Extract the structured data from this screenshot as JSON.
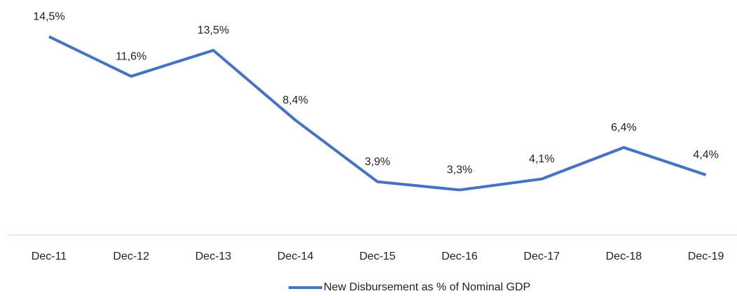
{
  "chart_data": {
    "type": "line",
    "categories": [
      "Dec-11",
      "Dec-12",
      "Dec-13",
      "Dec-14",
      "Dec-15",
      "Dec-16",
      "Dec-17",
      "Dec-18",
      "Dec-19"
    ],
    "series": [
      {
        "name": "New Disbursement as % of Nominal GDP",
        "color": "#4472c4",
        "values": [
          14.5,
          11.6,
          13.5,
          8.4,
          3.9,
          3.3,
          4.1,
          6.4,
          4.4
        ],
        "value_labels": [
          "14,5%",
          "11,6%",
          "13,5%",
          "8,4%",
          "3,9%",
          "3,3%",
          "4,1%",
          "6,4%",
          "4,4%"
        ]
      }
    ],
    "ylim": [
      0,
      16
    ],
    "legend": "bottom"
  }
}
